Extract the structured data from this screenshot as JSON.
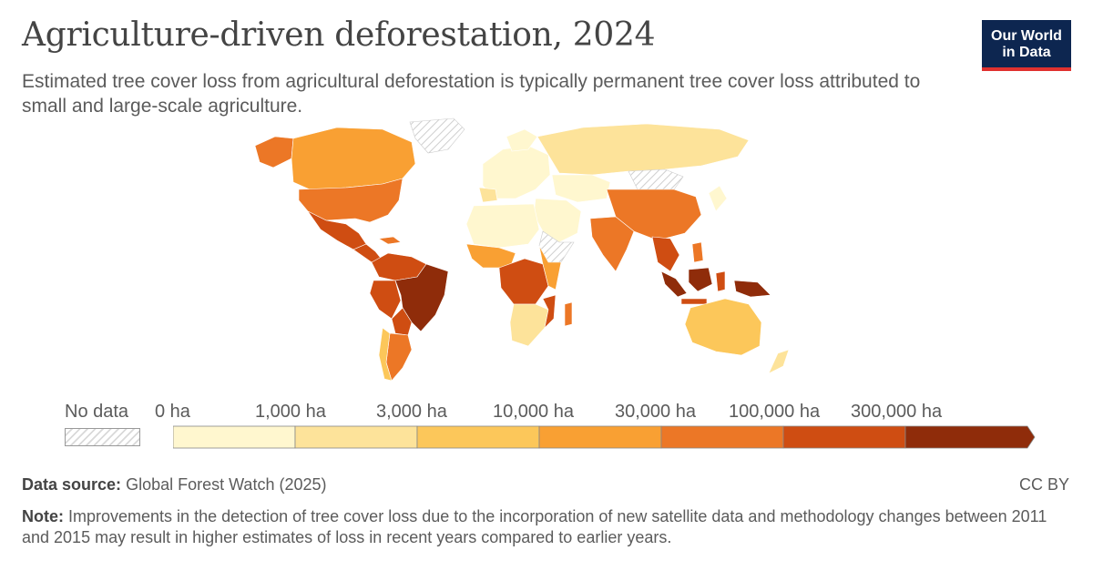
{
  "header": {
    "title": "Agriculture-driven deforestation, 2024",
    "subtitle": "Estimated tree cover loss from agricultural deforestation is typically permanent tree cover loss attributed to small and large-scale agriculture."
  },
  "logo": {
    "line1": "Our World",
    "line2": "in Data"
  },
  "legend": {
    "no_data_label": "No data",
    "bins": [
      "0 ha",
      "1,000 ha",
      "3,000 ha",
      "10,000 ha",
      "30,000 ha",
      "100,000 ha",
      "300,000 ha"
    ],
    "colors": [
      "#fff7cf",
      "#fde39a",
      "#fcc75a",
      "#f9a033",
      "#ec7726",
      "#cf4d12",
      "#8f2c0a"
    ]
  },
  "footer": {
    "source_label": "Data source:",
    "source_text": "Global Forest Watch (2025)",
    "license": "CC BY",
    "note_label": "Note:",
    "note_text": "Improvements in the detection of tree cover loss due to the incorporation of new satellite data and methodology changes between 2011 and 2015 may result in higher estimates of loss in recent years compared to earlier years."
  }
}
